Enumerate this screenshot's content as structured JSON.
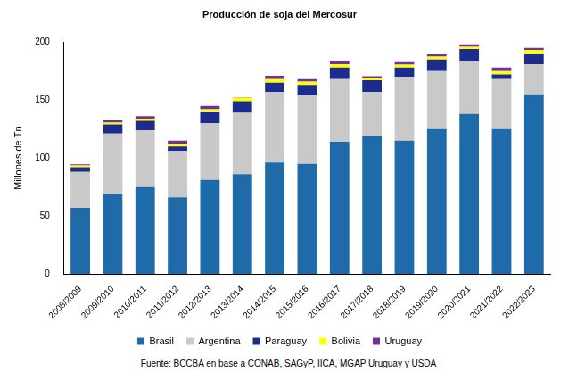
{
  "chart_data": {
    "type": "bar",
    "title": "Producción de soja del Mercosur",
    "y_label": "Millones de Tn",
    "source": "Fuente: BCCBA en base a CONAB, SAGyP, IICA, MGAP Uruguay y USDA",
    "categories": [
      "2008/2009",
      "2009/2010",
      "2010/2011",
      "2011/2012",
      "2012/2013",
      "2013/2014",
      "2014/2015",
      "2015/2016",
      "2016/2017",
      "2017/2018",
      "2018/2019",
      "2019/2020",
      "2020/2021",
      "2021/2022",
      "2022/2023"
    ],
    "series": [
      {
        "name": "Brasil",
        "color": "#1f6aa8",
        "values": [
          57,
          69,
          75,
          66,
          81,
          86,
          96,
          95,
          114,
          119,
          115,
          125,
          138,
          125,
          155
        ]
      },
      {
        "name": "Argentina",
        "color": "#c9c9c9",
        "values": [
          31,
          52,
          49,
          40,
          49,
          53,
          61,
          59,
          54,
          38,
          55,
          50,
          46,
          43,
          26
        ]
      },
      {
        "name": "Paraguay",
        "color": "#1c2c8c",
        "values": [
          4,
          8,
          8,
          4,
          10,
          10,
          8,
          9,
          10,
          10,
          8,
          10,
          10,
          4,
          9
        ]
      },
      {
        "name": "Bolivia",
        "color": "#ffff00",
        "values": [
          1.5,
          1.5,
          2,
          2.5,
          2,
          3,
          3,
          3,
          3,
          2,
          2.5,
          2.5,
          2,
          3,
          3
        ]
      },
      {
        "name": "Uruguay",
        "color": "#7030a0",
        "values": [
          1,
          2,
          2,
          2.5,
          3,
          0.5,
          3,
          2,
          3,
          1.5,
          3,
          2,
          2,
          3,
          2
        ]
      }
    ],
    "stacked": true,
    "ylim": [
      0,
      200
    ],
    "yticks": [
      0,
      50,
      100,
      150,
      200
    ],
    "grid": false,
    "legend": "bottom"
  }
}
